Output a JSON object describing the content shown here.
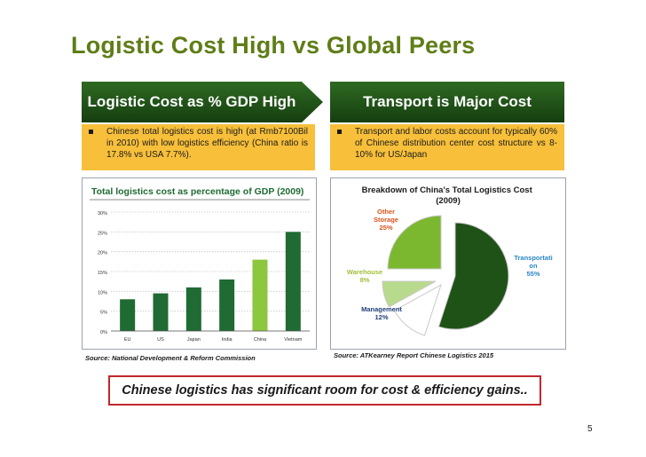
{
  "title": "Logistic Cost High vs Global Peers",
  "left": {
    "banner": "Logistic Cost as % GDP High",
    "bullet": "Chinese total logistics cost is high (at Rmb7100Bil in 2010) with low logistics efficiency (China ratio is 17.8% vs USA 7.7%).",
    "source": "Source: National Development & Reform Commission"
  },
  "right": {
    "banner": "Transport is Major Cost",
    "bullet": "Transport and labor costs account for typically 60% of Chinese distribution center cost structure vs 8-10% for US/Japan",
    "source": "Source: ATKearney Report Chinese Logistics 2015"
  },
  "callout": "Chinese logistics has significant room for cost & efficiency gains..",
  "page_number": "5",
  "colors": {
    "title": "#5f7d17",
    "banner": "#225417",
    "bullet_bg": "#f7bf3a",
    "callout_border": "#c0282e"
  },
  "chart_data": [
    {
      "type": "bar",
      "title": "Total logistics cost as percentage of GDP (2009)",
      "categories": [
        "EU",
        "US",
        "Japan",
        "India",
        "China",
        "Vietnam"
      ],
      "values": [
        8,
        9.5,
        11,
        13,
        18,
        25
      ],
      "colors": [
        "#1f6b33",
        "#1f6b33",
        "#1f6b33",
        "#1f6b33",
        "#8dc63f",
        "#1f6b33"
      ],
      "yticks": [
        "0%",
        "5%",
        "10%",
        "15%",
        "20%",
        "25%",
        "30%"
      ],
      "ylim": [
        0,
        30
      ],
      "grid": true
    },
    {
      "type": "pie",
      "title": "Breakdown of China's Total Logistics Cost (2009)",
      "slices": [
        {
          "label": "Transportation",
          "display_label": "Transportati on",
          "value": 55,
          "value_label": "55%",
          "color": "#1f5217"
        },
        {
          "label": "Management",
          "display_label": "Management",
          "value": 12,
          "value_label": "12%",
          "color": "#ffffff"
        },
        {
          "label": "Warehouse",
          "display_label": "Warehouse",
          "value": 8,
          "value_label": "8%",
          "color": "#b8da8c"
        },
        {
          "label": "Other Storage",
          "display_label": "Other Storage",
          "value": 25,
          "value_label": "25%",
          "color": "#7cb82f"
        }
      ]
    }
  ]
}
